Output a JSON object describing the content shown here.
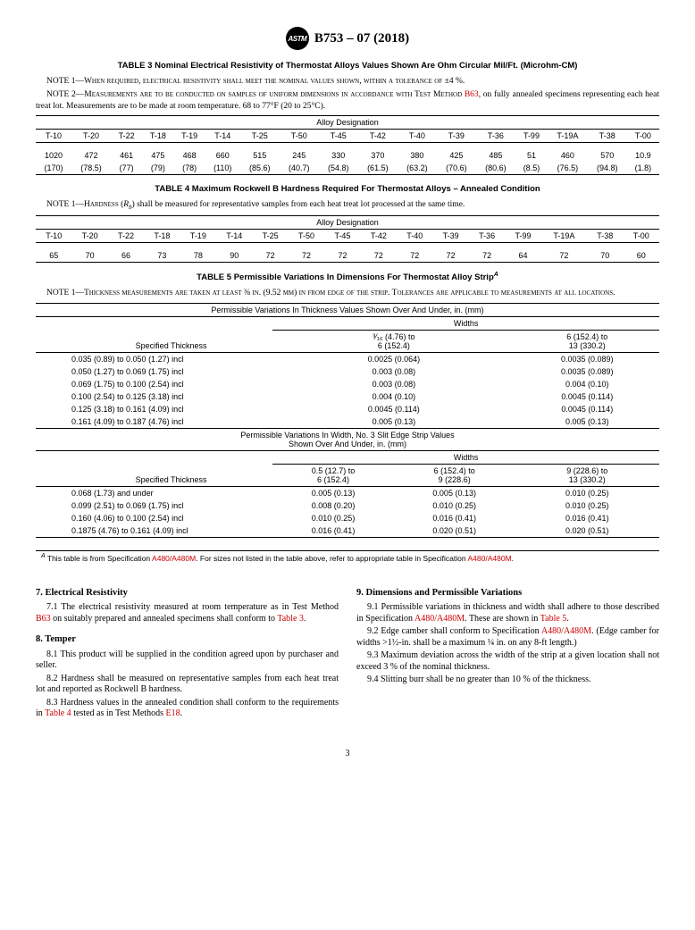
{
  "header": {
    "logo_text": "ASTM",
    "designation": "B753 – 07 (2018)"
  },
  "table3": {
    "title": "TABLE 3 Nominal Electrical Resistivity of Thermostat Alloys Values Shown Are Ohm Circular Mil/Ft. (Microhm-CM)",
    "note1_a": "NOTE 1—When required, electrical resistivity shall meet the nominal values shown, within a tolerance of ±4 %.",
    "note2_a": "NOTE 2—Measurements are to be conducted on samples of uniform dimensions in accordance with Test Method ",
    "note2_link": "B63",
    "note2_b": ", on fully annealed specimens representing each heat treat lot. Measurements are to be made at room temperature. 68 to 77°F (20 to 25°C).",
    "group_header": "Alloy Designation",
    "headers": [
      "T-10",
      "T-20",
      "T-22",
      "T-18",
      "T-19",
      "T-14",
      "T-25",
      "T-50",
      "T-45",
      "T-42",
      "T-40",
      "T-39",
      "T-36",
      "T-99",
      "T-19A",
      "T-38",
      "T-00"
    ],
    "row1": [
      "1020",
      "472",
      "461",
      "475",
      "468",
      "660",
      "515",
      "245",
      "330",
      "370",
      "380",
      "425",
      "485",
      "51",
      "460",
      "570",
      "10.9"
    ],
    "row2": [
      "(170)",
      "(78.5)",
      "(77)",
      "(79)",
      "(78)",
      "(110)",
      "(85.6)",
      "(40.7)",
      "(54.8)",
      "(61.5)",
      "(63.2)",
      "(70.6)",
      "(80.6)",
      "(8.5)",
      "(76.5)",
      "(94.8)",
      "(1.8)"
    ]
  },
  "table4": {
    "title": "TABLE 4 Maximum Rockwell B Hardness Required For Thermostat Alloys – Annealed Condition",
    "note_a": "NOTE 1—Hardness (",
    "note_sym": "R",
    "note_sub": "b",
    "note_b": ") shall be measured for representative samples from each heat treat lot processed at the same time.",
    "group_header": "Alloy Designation",
    "headers": [
      "T-10",
      "T-20",
      "T-22",
      "T-18",
      "T-19",
      "T-14",
      "T-25",
      "T-50",
      "T-45",
      "T-42",
      "T-40",
      "T-39",
      "T-36",
      "T-99",
      "T-19A",
      "T-38",
      "T-00"
    ],
    "row": [
      "65",
      "70",
      "66",
      "73",
      "78",
      "90",
      "72",
      "72",
      "72",
      "72",
      "72",
      "72",
      "72",
      "64",
      "72",
      "70",
      "60"
    ]
  },
  "table5": {
    "title_a": "TABLE 5 Permissible Variations In Dimensions For Thermostat Alloy Strip",
    "title_sup": "A",
    "note": "NOTE 1—Thickness measurements are taken at least ⅜ in. (9.52 mm) in from edge of the strip. Tolerances are applicable to measurements at all locations.",
    "section1_header": "Permissible Variations In Thickness Values Shown Over And Under, in. (mm)",
    "widths_label": "Widths",
    "spec_thickness_label": "Specified Thickness",
    "s1_col1": "³⁄₁₆ (4.76) to\n6 (152.4)",
    "s1_col2": "6 (152.4) to\n13 (330.2)",
    "s1_rows": [
      [
        "0.035 (0.89) to 0.050 (1.27) incl",
        "0.0025 (0.064)",
        "0.0035 (0.089)"
      ],
      [
        "0.050 (1.27) to 0.069 (1.75) incl",
        "0.003   (0.08)",
        "0.0035 (0.089)"
      ],
      [
        "0.069 (1.75) to 0.100 (2.54) incl",
        "0.003   (0.08)",
        "0.004   (0.10)"
      ],
      [
        "0.100 (2.54) to 0.125 (3.18) incl",
        "0.004   (0.10)",
        "0.0045 (0.114)"
      ],
      [
        "0.125 (3.18) to 0.161 (4.09) incl",
        "0.0045 (0.114)",
        "0.0045 (0.114)"
      ],
      [
        "0.161 (4.09) to 0.187 (4.76) incl",
        "0.005   (0.13)",
        "0.005   (0.13)"
      ]
    ],
    "section2_header": "Permissible Variations In Width, No. 3 Slit Edge Strip Values\nShown Over And Under, in. (mm)",
    "s2_col1": "0.5 (12.7) to\n6 (152.4)",
    "s2_col2": "6 (152.4) to\n9 (228.6)",
    "s2_col3": "9 (228.6) to\n13 (330.2)",
    "s2_rows": [
      [
        "0.068 (1.73) and under",
        "0.005 (0.13)",
        "0.005 (0.13)",
        "0.010 (0.25)"
      ],
      [
        "0.099 (2.51) to 0.069 (1.75) incl",
        "0.008 (0.20)",
        "0.010 (0.25)",
        "0.010 (0.25)"
      ],
      [
        "0.160 (4.06) to 0.100 (2.54) incl",
        "0.010 (0.25)",
        "0.016 (0.41)",
        "0.016 (0.41)"
      ],
      [
        "0.1875 (4.76) to 0.161 (4.09) incl",
        "0.016 (0.41)",
        "0.020 (0.51)",
        "0.020 (0.51)"
      ]
    ],
    "footnote_a": " This table is from Specification ",
    "footnote_link1": "A480/A480M",
    "footnote_b": ". For sizes not listed in the table above, refer to appropriate table in Specification ",
    "footnote_link2": "A480/A480M",
    "footnote_c": "."
  },
  "body": {
    "s7_title": "7.  Electrical Resistivity",
    "s7_1a": "7.1 The electrical resistivity measured at room temperature as in Test Method ",
    "s7_1link": "B63",
    "s7_1b": " on suitably prepared and annealed specimens shall conform to ",
    "s7_1link2": "Table 3",
    "s7_1c": ".",
    "s8_title": "8.  Temper",
    "s8_1": "8.1 This product will be supplied in the condition agreed upon by purchaser and seller.",
    "s8_2": "8.2 Hardness shall be measured on representative samples from each heat treat lot and reported as Rockwell B hardness.",
    "s8_3a": "8.3 Hardness values in the annealed condition shall conform to the requirements in ",
    "s8_3link": "Table 4",
    "s8_3b": " tested as in Test Methods ",
    "s8_3link2": "E18",
    "s8_3c": ".",
    "s9_title": "9.  Dimensions and Permissible Variations",
    "s9_1a": "9.1 Permissible variations in thickness and width shall adhere to those described in Specification ",
    "s9_1link": "A480/A480M",
    "s9_1b": ". These are shown in ",
    "s9_1link2": "Table 5",
    "s9_1c": ".",
    "s9_2a": "9.2 Edge camber shall conform to Specification ",
    "s9_2link": "A480/A480M",
    "s9_2b": ". (Edge camber for widths >1½-in. shall be a maximum ¼ in. on any 8-ft length.)",
    "s9_3": "9.3 Maximum deviation across the width of the strip at a given location shall not exceed 3 % of the nominal thickness.",
    "s9_4": "9.4 Slitting burr shall be no greater than 10 % of the thickness."
  },
  "page_number": "3"
}
